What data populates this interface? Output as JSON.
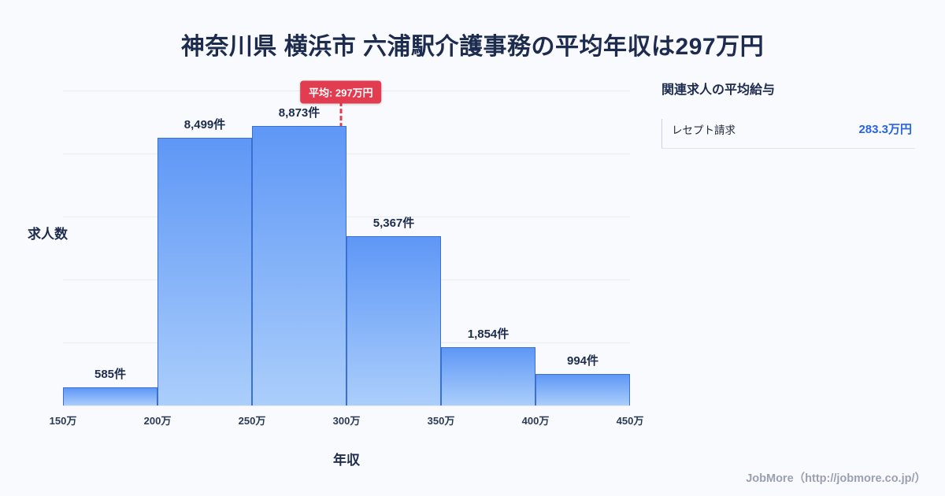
{
  "page": {
    "title": "神奈川県 横浜市 六浦駅介護事務の平均年収は297万円",
    "footer": "JobMore（http://jobmore.co.jp/）"
  },
  "chart_data": {
    "type": "bar",
    "title": "神奈川県 横浜市 六浦駅介護事務の平均年収は297万円",
    "xlabel": "年収",
    "ylabel": "求人数",
    "x_ticks": [
      "150万",
      "200万",
      "250万",
      "300万",
      "350万",
      "400万",
      "450万"
    ],
    "bin_edges": [
      150,
      200,
      250,
      300,
      350,
      400,
      450
    ],
    "values": [
      585,
      8499,
      8873,
      5367,
      1854,
      994
    ],
    "bar_labels": [
      "585件",
      "8,499件",
      "8,873件",
      "5,367件",
      "1,854件",
      "994件"
    ],
    "ylim": [
      0,
      10000
    ],
    "grid": true,
    "legend": "none",
    "average": {
      "value": 297,
      "label": "平均: 297万円",
      "line_color": "#e23c50",
      "line_style": "dashed"
    },
    "colors": {
      "bar_fill_top": "#5e97f6",
      "bar_fill_bottom": "#abcefb",
      "bar_border": "#3b70d2",
      "text": "#1d2c4e"
    }
  },
  "side_panel": {
    "title": "関連求人の平均給与",
    "items": [
      {
        "label": "レセプト請求",
        "value": "283.3万円"
      }
    ],
    "value_color": "#2563eb"
  }
}
